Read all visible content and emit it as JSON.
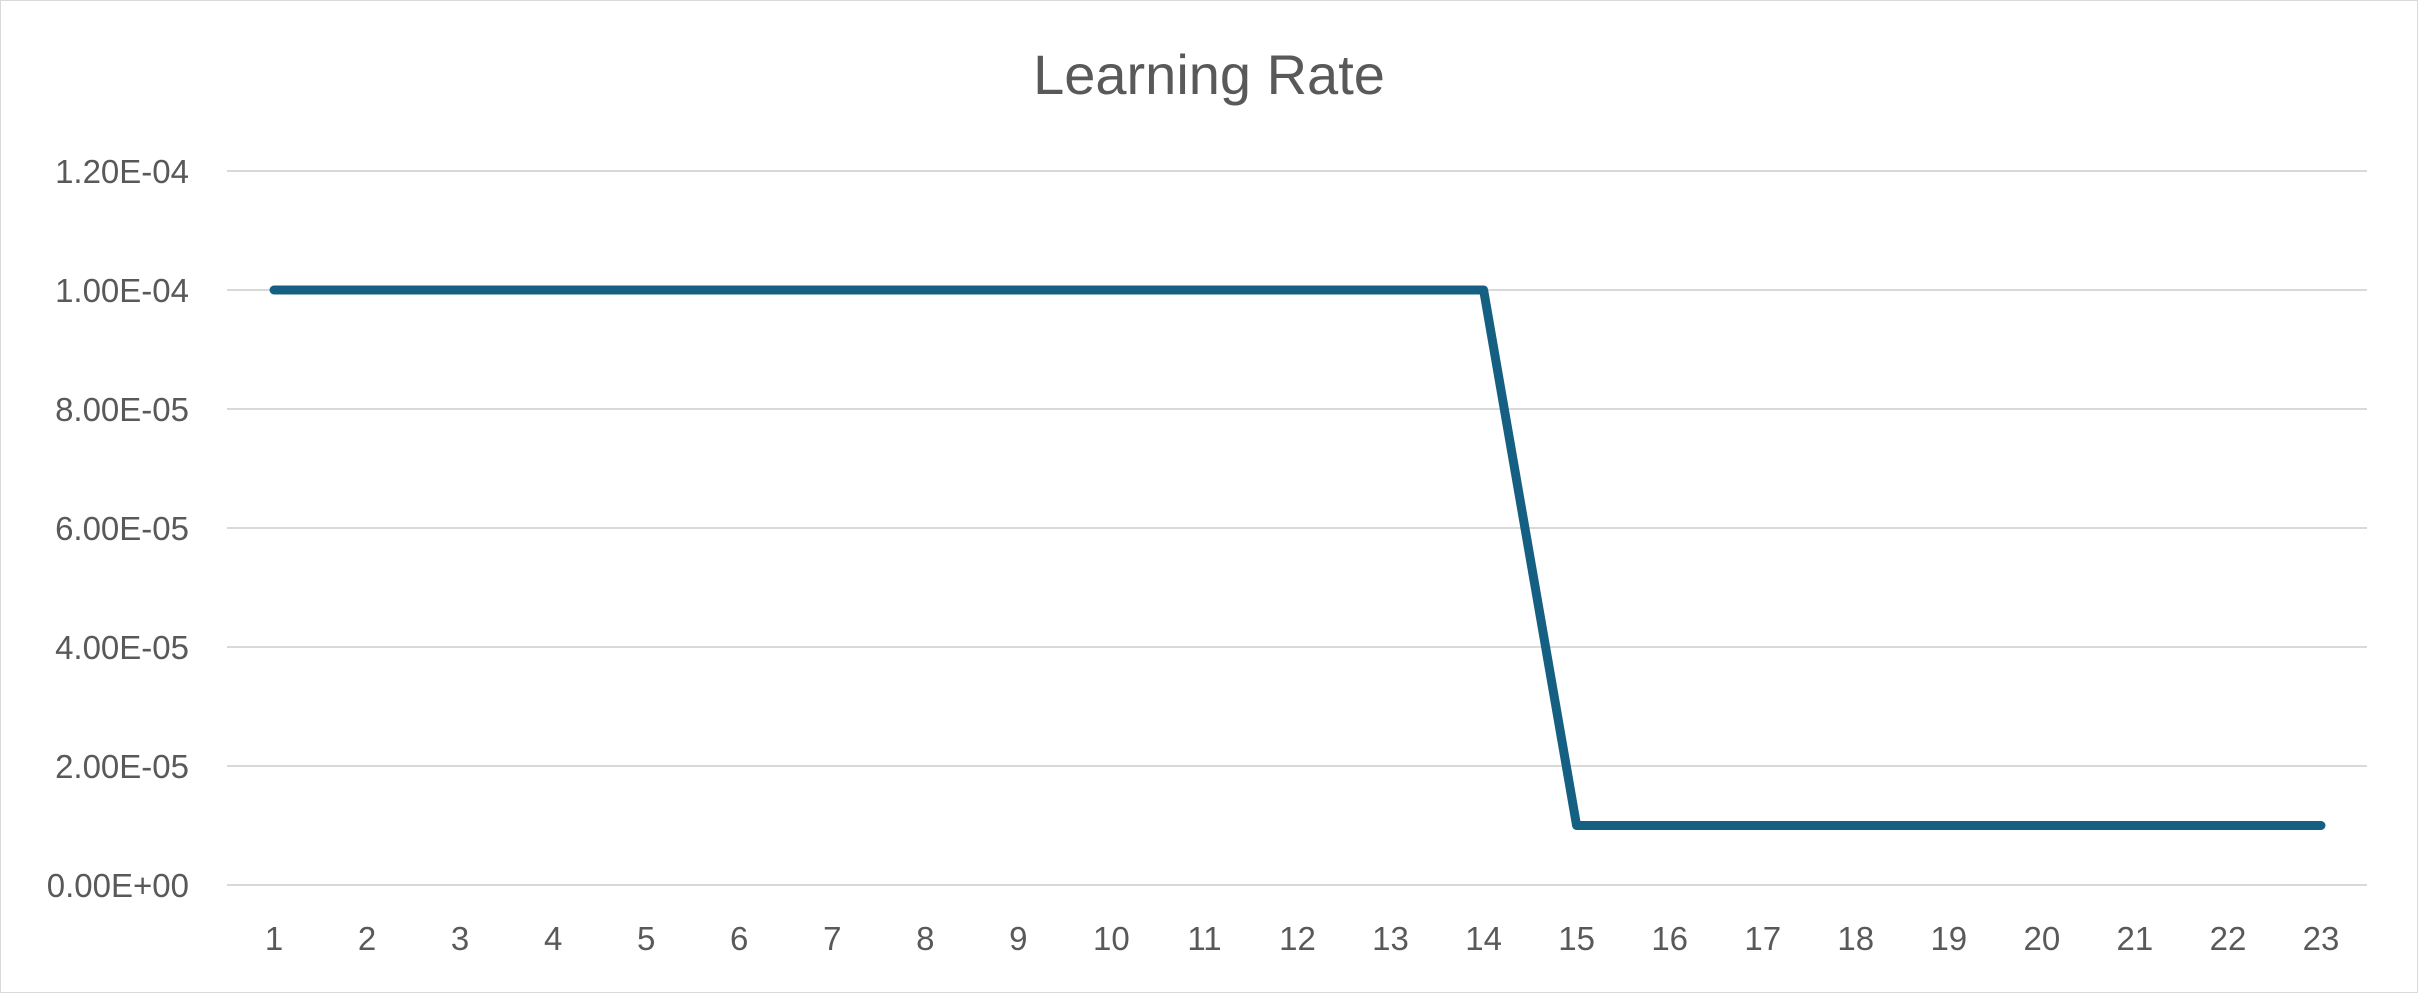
{
  "chart_data": {
    "type": "line",
    "title": "Learning Rate",
    "xlabel": "",
    "ylabel": "",
    "categories": [
      "1",
      "2",
      "3",
      "4",
      "5",
      "6",
      "7",
      "8",
      "9",
      "10",
      "11",
      "12",
      "13",
      "14",
      "15",
      "16",
      "17",
      "18",
      "19",
      "20",
      "21",
      "22",
      "23"
    ],
    "series": [
      {
        "values": [
          0.0001,
          0.0001,
          0.0001,
          0.0001,
          0.0001,
          0.0001,
          0.0001,
          0.0001,
          0.0001,
          0.0001,
          0.0001,
          0.0001,
          0.0001,
          0.0001,
          1e-05,
          1e-05,
          1e-05,
          1e-05,
          1e-05,
          1e-05,
          1e-05,
          1e-05,
          1e-05
        ],
        "color": "#156082"
      }
    ],
    "ylim": [
      0,
      0.00012
    ],
    "yticks": [
      0,
      2e-05,
      4e-05,
      6e-05,
      8e-05,
      0.0001,
      0.00012
    ],
    "ytick_labels": [
      "0.00E+00",
      "2.00E-05",
      "4.00E-05",
      "6.00E-05",
      "8.00E-05",
      "1.00E-04",
      "1.20E-04"
    ],
    "grid": true,
    "legend": "none",
    "gridline_color": "#d9d9d9",
    "text_color": "#595959"
  }
}
